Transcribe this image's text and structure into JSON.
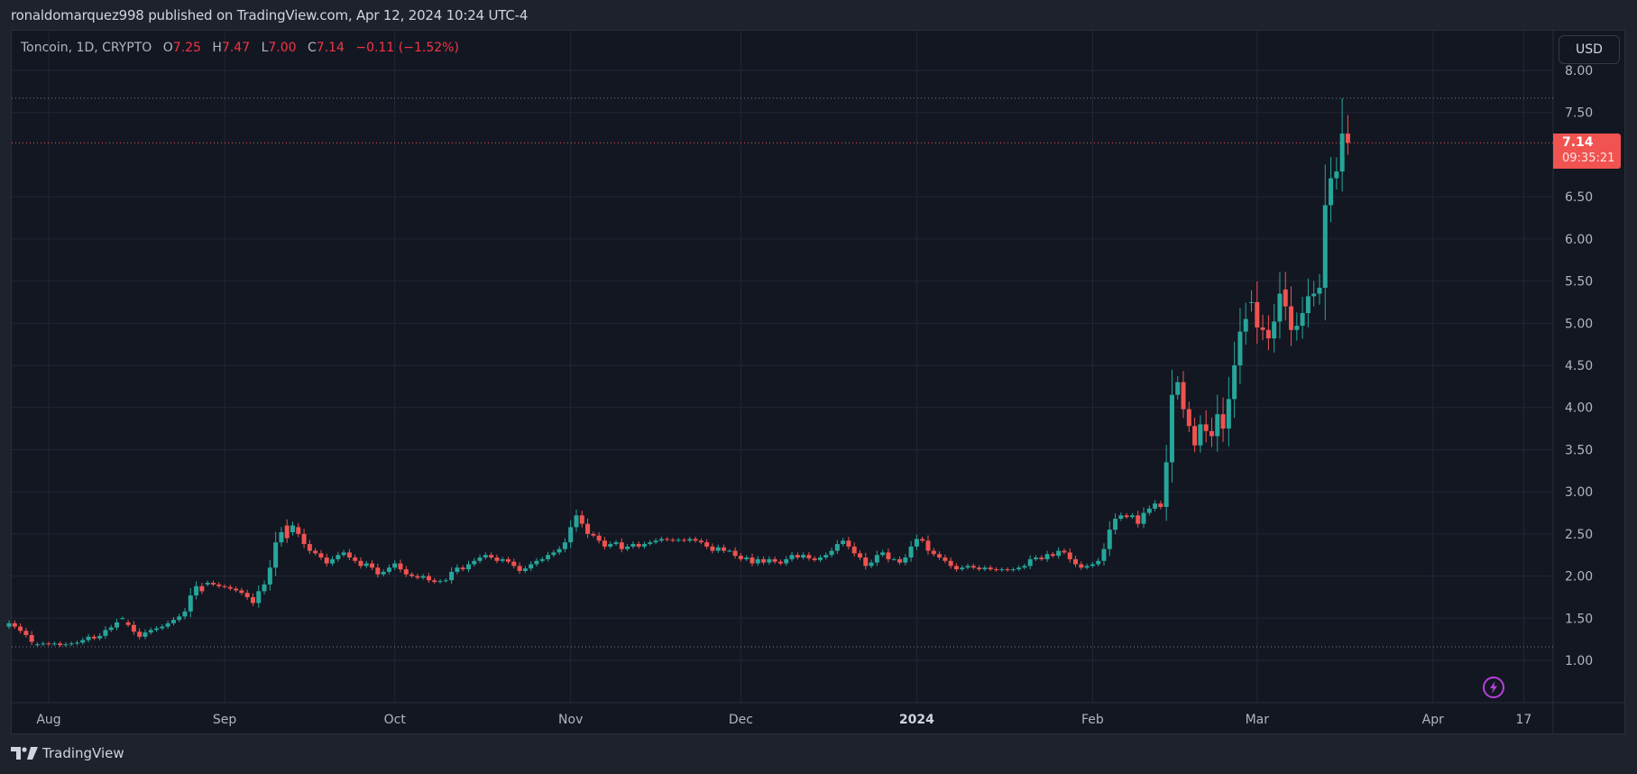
{
  "header": {
    "published": "ronaldomarquez998 published on TradingView.com, Apr 12, 2024 10:24 UTC-4"
  },
  "legend": {
    "symbol": "Toncoin, 1D, CRYPTO",
    "o_label": "O",
    "o": "7.25",
    "h_label": "H",
    "h": "7.47",
    "l_label": "L",
    "l": "7.00",
    "c_label": "C",
    "c": "7.14",
    "change": "−0.11 (−1.52%)"
  },
  "currency_button": "USD",
  "last_price": {
    "price": "7.14",
    "countdown": "09:35:21",
    "color": "#f05350"
  },
  "footer": {
    "brand": "TradingView"
  },
  "colors": {
    "up": "#26a69a",
    "down": "#ef5350",
    "grid": "#232734",
    "bg": "#131722",
    "text": "#b2b5be",
    "accent_bolt": "#b543d9"
  },
  "chart_data": {
    "type": "candlestick",
    "title": "Toncoin, 1D, CRYPTO",
    "xlabel": "",
    "ylabel": "USD",
    "ylim": [
      0.5,
      8.1
    ],
    "y_ticks": [
      "1.00",
      "1.50",
      "2.00",
      "2.50",
      "3.00",
      "3.50",
      "4.00",
      "4.50",
      "5.00",
      "5.50",
      "6.00",
      "6.50",
      "7.50",
      "8.00"
    ],
    "x_ticks": [
      {
        "label": "Aug",
        "day": 7
      },
      {
        "label": "Sep",
        "day": 38
      },
      {
        "label": "Oct",
        "day": 68
      },
      {
        "label": "Nov",
        "day": 99
      },
      {
        "label": "Dec",
        "day": 129
      },
      {
        "label": "2024",
        "day": 160,
        "bold": true
      },
      {
        "label": "Feb",
        "day": 191
      },
      {
        "label": "Mar",
        "day": 220
      },
      {
        "label": "Apr",
        "day": 251
      },
      {
        "label": "17",
        "day": 267
      }
    ],
    "start_date": "2023-07-25",
    "high_line": 7.67,
    "low_line": 1.16,
    "last": 7.14,
    "closes": [
      1.44,
      1.4,
      1.35,
      1.3,
      1.22,
      1.19,
      1.2,
      1.19,
      1.2,
      1.18,
      1.19,
      1.2,
      1.21,
      1.24,
      1.28,
      1.26,
      1.29,
      1.36,
      1.39,
      1.45,
      1.5,
      1.42,
      1.34,
      1.28,
      1.33,
      1.36,
      1.38,
      1.4,
      1.44,
      1.48,
      1.52,
      1.58,
      1.77,
      1.88,
      1.82,
      1.92,
      1.9,
      1.88,
      1.87,
      1.85,
      1.83,
      1.8,
      1.75,
      1.68,
      1.82,
      1.9,
      2.1,
      2.4,
      2.52,
      2.45,
      2.6,
      2.5,
      2.38,
      2.3,
      2.27,
      2.22,
      2.15,
      2.2,
      2.25,
      2.28,
      2.22,
      2.18,
      2.12,
      2.15,
      2.1,
      2.02,
      2.05,
      2.1,
      2.15,
      2.08,
      2.02,
      2.0,
      1.98,
      2.0,
      1.95,
      1.93,
      1.94,
      1.95,
      2.05,
      2.1,
      2.08,
      2.14,
      2.18,
      2.22,
      2.25,
      2.22,
      2.18,
      2.2,
      2.17,
      2.12,
      2.06,
      2.09,
      2.14,
      2.18,
      2.2,
      2.25,
      2.28,
      2.32,
      2.4,
      2.58,
      2.72,
      2.62,
      2.5,
      2.48,
      2.42,
      2.35,
      2.38,
      2.4,
      2.32,
      2.35,
      2.38,
      2.35,
      2.38,
      2.4,
      2.42,
      2.44,
      2.43,
      2.42,
      2.43,
      2.42,
      2.44,
      2.42,
      2.4,
      2.35,
      2.3,
      2.34,
      2.3,
      2.3,
      2.24,
      2.2,
      2.22,
      2.15,
      2.2,
      2.16,
      2.2,
      2.17,
      2.15,
      2.2,
      2.25,
      2.22,
      2.25,
      2.21,
      2.19,
      2.22,
      2.25,
      2.3,
      2.38,
      2.42,
      2.35,
      2.27,
      2.22,
      2.12,
      2.16,
      2.25,
      2.28,
      2.2,
      2.2,
      2.16,
      2.22,
      2.35,
      2.44,
      2.42,
      2.3,
      2.26,
      2.22,
      2.18,
      2.12,
      2.08,
      2.1,
      2.12,
      2.1,
      2.08,
      2.1,
      2.08,
      2.07,
      2.08,
      2.07,
      2.08,
      2.1,
      2.12,
      2.2,
      2.22,
      2.2,
      2.26,
      2.24,
      2.3,
      2.28,
      2.2,
      2.14,
      2.1,
      2.12,
      2.14,
      2.18,
      2.32,
      2.55,
      2.68,
      2.72,
      2.7,
      2.72,
      2.62,
      2.75,
      2.8,
      2.86,
      2.82,
      3.35,
      4.15,
      4.3,
      3.98,
      3.78,
      3.55,
      3.8,
      3.72,
      3.66,
      3.92,
      3.75,
      4.1,
      4.5,
      4.9,
      5.05,
      5.25,
      4.95,
      4.92,
      4.82,
      5.02,
      5.35,
      5.2,
      4.92,
      4.97,
      5.12,
      5.32,
      5.35,
      5.42,
      6.4,
      6.72,
      6.8,
      7.25,
      7.14
    ],
    "opens": [
      1.4,
      1.44,
      1.4,
      1.35,
      1.3,
      1.18,
      1.19,
      1.2,
      1.19,
      1.2,
      1.18,
      1.19,
      1.2,
      1.21,
      1.24,
      1.28,
      1.26,
      1.29,
      1.36,
      1.39,
      1.5,
      1.45,
      1.42,
      1.34,
      1.28,
      1.33,
      1.36,
      1.38,
      1.4,
      1.44,
      1.48,
      1.52,
      1.58,
      1.77,
      1.88,
      1.9,
      1.92,
      1.9,
      1.88,
      1.87,
      1.85,
      1.83,
      1.8,
      1.75,
      1.68,
      1.82,
      1.9,
      2.1,
      2.4,
      2.6,
      2.52,
      2.58,
      2.5,
      2.38,
      2.3,
      2.27,
      2.22,
      2.15,
      2.2,
      2.25,
      2.28,
      2.22,
      2.18,
      2.12,
      2.15,
      2.1,
      2.02,
      2.05,
      2.1,
      2.15,
      2.08,
      2.02,
      2.0,
      1.98,
      2.0,
      1.95,
      1.93,
      1.94,
      1.95,
      2.05,
      2.1,
      2.08,
      2.14,
      2.18,
      2.22,
      2.25,
      2.22,
      2.18,
      2.2,
      2.17,
      2.12,
      2.06,
      2.09,
      2.14,
      2.18,
      2.2,
      2.25,
      2.28,
      2.32,
      2.4,
      2.58,
      2.72,
      2.62,
      2.5,
      2.48,
      2.42,
      2.35,
      2.38,
      2.4,
      2.32,
      2.35,
      2.38,
      2.35,
      2.38,
      2.4,
      2.42,
      2.44,
      2.43,
      2.42,
      2.43,
      2.42,
      2.44,
      2.42,
      2.4,
      2.35,
      2.3,
      2.34,
      2.3,
      2.3,
      2.24,
      2.2,
      2.22,
      2.15,
      2.2,
      2.16,
      2.2,
      2.17,
      2.15,
      2.2,
      2.25,
      2.22,
      2.25,
      2.21,
      2.19,
      2.22,
      2.25,
      2.3,
      2.38,
      2.42,
      2.35,
      2.27,
      2.22,
      2.12,
      2.16,
      2.25,
      2.28,
      2.2,
      2.2,
      2.16,
      2.22,
      2.35,
      2.44,
      2.42,
      2.3,
      2.26,
      2.22,
      2.18,
      2.12,
      2.08,
      2.1,
      2.12,
      2.1,
      2.08,
      2.1,
      2.08,
      2.07,
      2.08,
      2.07,
      2.08,
      2.1,
      2.12,
      2.2,
      2.22,
      2.2,
      2.26,
      2.24,
      2.3,
      2.28,
      2.2,
      2.14,
      2.1,
      2.12,
      2.14,
      2.18,
      2.32,
      2.55,
      2.68,
      2.72,
      2.7,
      2.72,
      2.62,
      2.75,
      2.8,
      2.86,
      2.82,
      3.35,
      4.15,
      4.3,
      3.98,
      3.78,
      3.55,
      3.8,
      3.72,
      3.66,
      3.92,
      3.75,
      4.1,
      4.5,
      4.9,
      5.25,
      5.25,
      4.95,
      4.92,
      4.82,
      5.02,
      5.4,
      5.2,
      4.92,
      4.97,
      5.12,
      5.32,
      5.35,
      5.42,
      6.4,
      6.72,
      6.8,
      7.25
    ]
  }
}
